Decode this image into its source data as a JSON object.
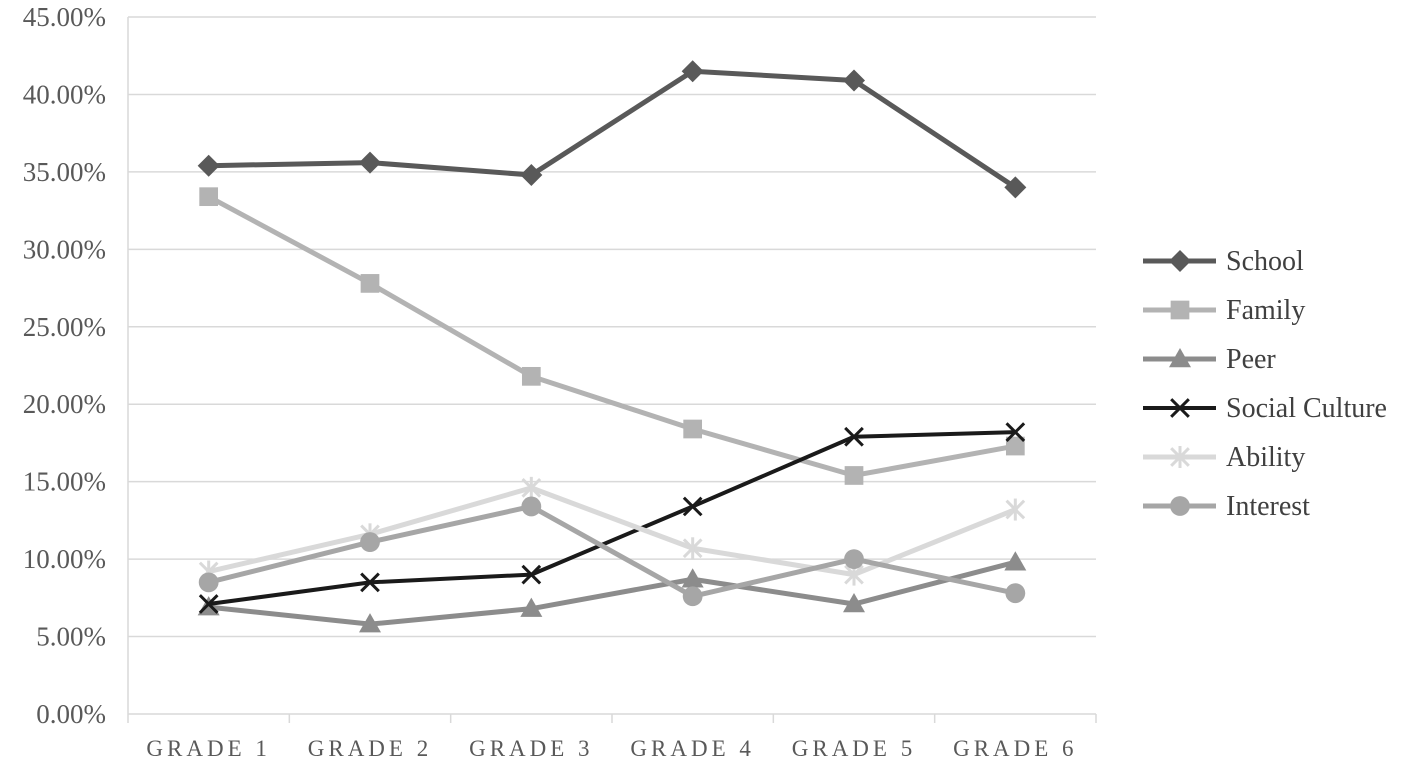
{
  "chart_data": {
    "type": "line",
    "title": "",
    "xlabel": "",
    "ylabel": "",
    "categories": [
      "GRADE 1",
      "GRADE 2",
      "GRADE 3",
      "GRADE 4",
      "GRADE 5",
      "GRADE 6"
    ],
    "y_ticks": [
      "0.00%",
      "5.00%",
      "10.00%",
      "15.00%",
      "20.00%",
      "25.00%",
      "30.00%",
      "35.00%",
      "40.00%",
      "45.00%"
    ],
    "ylim": [
      0,
      45
    ],
    "grid": true,
    "legend_position": "right",
    "series": [
      {
        "name": "School",
        "values": [
          35.4,
          35.6,
          34.8,
          41.5,
          40.9,
          34.0
        ],
        "color": "#595959",
        "marker": "diamond",
        "width": 5
      },
      {
        "name": "Family",
        "values": [
          33.4,
          27.8,
          21.8,
          18.4,
          15.4,
          17.3
        ],
        "color": "#b3b3b3",
        "marker": "square",
        "width": 5
      },
      {
        "name": "Peer",
        "values": [
          6.9,
          5.8,
          6.8,
          8.7,
          7.1,
          9.8
        ],
        "color": "#8c8c8c",
        "marker": "triangle",
        "width": 5
      },
      {
        "name": "Social Culture",
        "values": [
          7.1,
          8.5,
          9.0,
          13.4,
          17.9,
          18.2
        ],
        "color": "#1a1a1a",
        "marker": "x",
        "width": 4
      },
      {
        "name": "Ability",
        "values": [
          9.2,
          11.6,
          14.6,
          10.7,
          9.0,
          13.2
        ],
        "color": "#d9d9d9",
        "marker": "star",
        "width": 5
      },
      {
        "name": "Interest",
        "values": [
          8.5,
          11.1,
          13.4,
          7.6,
          10.0,
          7.8
        ],
        "color": "#a6a6a6",
        "marker": "circle",
        "width": 5
      }
    ]
  }
}
